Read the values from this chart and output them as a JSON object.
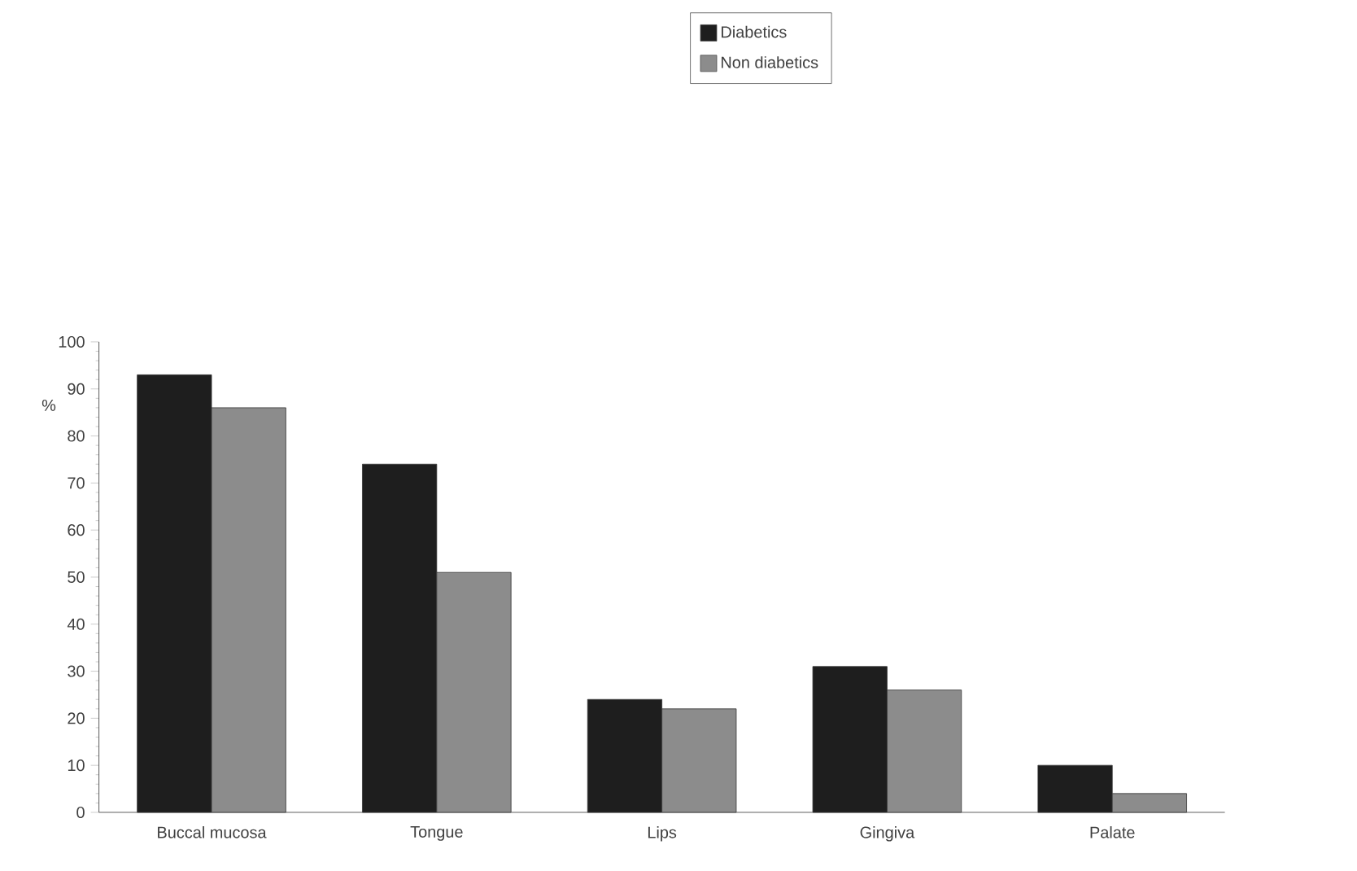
{
  "chart_data": {
    "type": "bar",
    "ylabel": "%",
    "categories": [
      "Buccal mucosa",
      "Tongue",
      "Lips",
      "Gingiva",
      "Palate"
    ],
    "series": [
      {
        "name": "Diabetics",
        "color": "#1e1e1e",
        "values": [
          93,
          74,
          24,
          31,
          10
        ]
      },
      {
        "name": "Non diabetics",
        "color": "#8c8c8c",
        "values": [
          86,
          51,
          22,
          26,
          4
        ]
      }
    ],
    "ylim": [
      0,
      100
    ],
    "yticks": [
      0,
      10,
      20,
      30,
      40,
      50,
      60,
      70,
      80,
      90,
      100
    ],
    "grid": false,
    "legend": "top right"
  }
}
